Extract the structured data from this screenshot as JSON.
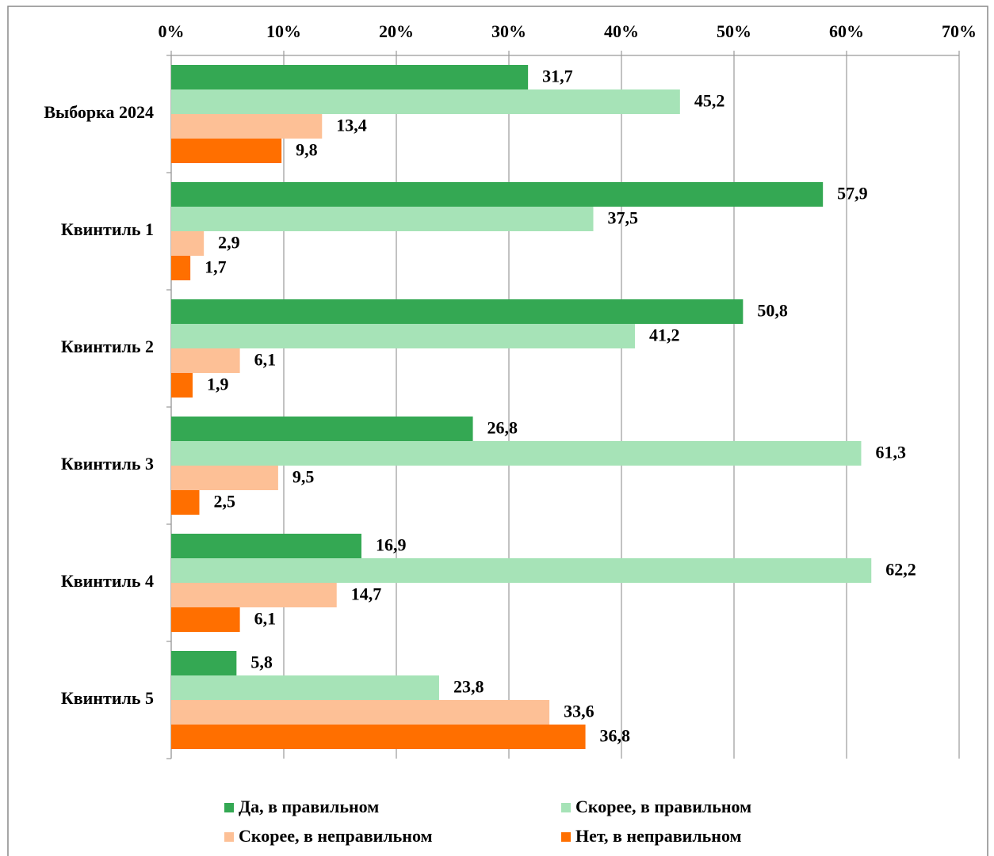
{
  "chart_data": {
    "type": "bar",
    "orientation": "horizontal",
    "categories": [
      "Выборка 2024",
      "Квинтиль 1",
      "Квинтиль 2",
      "Квинтиль 3",
      "Квинтиль 4",
      "Квинтиль 5"
    ],
    "series": [
      {
        "name": "Да, в правильном",
        "color": "#34a853",
        "values": [
          31.7,
          57.9,
          50.8,
          26.8,
          16.9,
          5.8
        ],
        "value_labels": [
          "31,7",
          "57,9",
          "50,8",
          "26,8",
          "16,9",
          "5,8"
        ]
      },
      {
        "name": "Скорее, в правильном",
        "color": "#a6e3b7",
        "values": [
          45.2,
          37.5,
          41.2,
          61.3,
          62.2,
          23.8
        ],
        "value_labels": [
          "45,2",
          "37,5",
          "41,2",
          "61,3",
          "62,2",
          "23,8"
        ]
      },
      {
        "name": "Скорее, в неправильном",
        "color": "#fdc096",
        "values": [
          13.4,
          2.9,
          6.1,
          9.5,
          14.7,
          33.6
        ],
        "value_labels": [
          "13,4",
          "2,9",
          "6,1",
          "9,5",
          "14,7",
          "33,6"
        ]
      },
      {
        "name": "Нет, в неправильном",
        "color": "#ff6f00",
        "values": [
          9.8,
          1.7,
          1.9,
          2.5,
          6.1,
          36.8
        ],
        "value_labels": [
          "9,8",
          "1,7",
          "1,9",
          "2,5",
          "6,1",
          "36,8"
        ]
      }
    ],
    "xlim": [
      0,
      70
    ],
    "xticks": [
      {
        "value": 0,
        "label": "0%"
      },
      {
        "value": 10,
        "label": "10%"
      },
      {
        "value": 20,
        "label": "20%"
      },
      {
        "value": 30,
        "label": "30%"
      },
      {
        "value": 40,
        "label": "40%"
      },
      {
        "value": 50,
        "label": "50%"
      },
      {
        "value": 60,
        "label": "60%"
      },
      {
        "value": 70,
        "label": "70%"
      }
    ],
    "grid": true,
    "legend": "bottom"
  }
}
